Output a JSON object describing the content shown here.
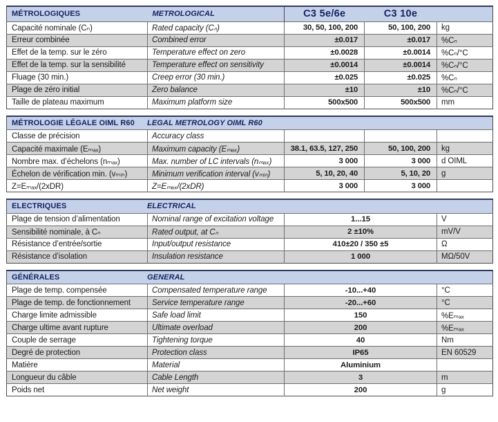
{
  "colors": {
    "header_bg": "#c5d1e9",
    "header_text": "#13235f",
    "row_alt": "#d4d4d4"
  },
  "columns": {
    "product1": "C3 5e/6e",
    "product2": "C3 10e"
  },
  "sections": [
    {
      "title_fr": "MÉTROLOGIQUES",
      "title_en": "METROLOGICAL",
      "rows": [
        {
          "fr": "Capacité nominale (Cₙ)",
          "en": "Rated capacity (Cₙ)",
          "v1": "30, 50, 100, 200",
          "v2": "50, 100, 200",
          "unit": "kg"
        },
        {
          "fr": "Erreur combinée",
          "en": "Combined error",
          "v1": "±0.017",
          "v2": "±0.017",
          "unit": "%Cₙ"
        },
        {
          "fr": "Effet de la temp. sur le zéro",
          "en": "Temperature effect on zero",
          "v1": "±0.0028",
          "v2": "±0.0014",
          "unit": "%Cₙ/°C"
        },
        {
          "fr": "Effet de la temp. sur la sensibilité",
          "en": "Temperature effect on sensitivity",
          "v1": "±0.0014",
          "v2": "±0.0014",
          "unit": "%Cₙ/°C"
        },
        {
          "fr": "Fluage (30 min.)",
          "en": "Creep error (30 min.)",
          "v1": "±0.025",
          "v2": "±0.025",
          "unit": "%Cₙ"
        },
        {
          "fr": "Plage de zéro initial",
          "en": "Zero balance",
          "v1": "±10",
          "v2": "±10",
          "unit": "%Cₙ/°C"
        },
        {
          "fr": "Taille de plateau maximum",
          "en": "Maximum platform size",
          "v1": "500x500",
          "v2": "500x500",
          "unit": "mm"
        }
      ]
    },
    {
      "title_fr": "MÉTROLOGIE LÉGALE OIML R60",
      "title_en": "LEGAL METROLOGY OIML R60",
      "rows": [
        {
          "fr": "Classe de précision",
          "en": "Accuracy class",
          "v1": "",
          "v2": "",
          "unit": ""
        },
        {
          "fr": "Capacité maximale (Eₘₐₓ)",
          "en": "Maximum capacity (Eₘₐₓ)",
          "v1": "38.1, 63.5, 127, 250",
          "v2": "50, 100, 200",
          "unit": "kg"
        },
        {
          "fr": "Nombre max. d’échelons (nₘₐₓ)",
          "en": "Max. number of LC intervals (nₘₐₓ)",
          "v1": "3 000",
          "v2": "3 000",
          "unit": "d OIML"
        },
        {
          "fr": "Échelon de vérification min. (vₘᵢₙ)",
          "en": "Minimum verification interval (vₘᵢₙ)",
          "v1": "5, 10, 20, 40",
          "v2": "5, 10, 20",
          "unit": "g"
        },
        {
          "fr": "Z=Eₘₐₓ/(2xDR)",
          "en": "Z=Eₘₐₓ/(2xDR)",
          "v1": "3 000",
          "v2": "3 000",
          "unit": ""
        }
      ]
    },
    {
      "title_fr": "ELECTRIQUES",
      "title_en": "ELECTRICAL",
      "rows": [
        {
          "fr": "Plage de tension d’alimentation",
          "en": "Nominal range of excitation voltage",
          "span": "1...15",
          "unit": "V"
        },
        {
          "fr": "Sensibilité nominale, à Cₙ",
          "en": "Rated output, at Cₙ",
          "span": "2 ±10%",
          "unit": "mV/V"
        },
        {
          "fr": "Résistance d’entrée/sortie",
          "en": "Input/output resistance",
          "span": "410±20 / 350 ±5",
          "unit": "Ω"
        },
        {
          "fr": "Résistance d’isolation",
          "en": "Insulation resistance",
          "span": "1 000",
          "unit": "MΩ/50V"
        }
      ]
    },
    {
      "title_fr": "GÉNÉRALES",
      "title_en": "GENERAL",
      "rows": [
        {
          "fr": "Plage de temp. compensée",
          "en": "Compensated temperature range",
          "span": "-10...+40",
          "unit": "°C"
        },
        {
          "fr": "Plage de temp. de fonctionnement",
          "en": "Service temperature range",
          "span": "-20...+60",
          "unit": "°C"
        },
        {
          "fr": "Charge limite admissible",
          "en": "Safe load limit",
          "span": "150",
          "unit": "%Eₘₐₓ"
        },
        {
          "fr": "Charge ultime avant rupture",
          "en": "Ultimate overload",
          "span": "200",
          "unit": "%Eₘₐₓ"
        },
        {
          "fr": "Couple de serrage",
          "en": "Tightening torque",
          "span": "40",
          "unit": "Nm"
        },
        {
          "fr": "Degré de protection",
          "en": "Protection class",
          "span": "IP65",
          "unit": "EN 60529"
        },
        {
          "fr": "Matière",
          "en": "Material",
          "span": "Aluminium",
          "unit": ""
        },
        {
          "fr": "Longueur du câble",
          "en": "Cable Length",
          "span": "3",
          "unit": "m"
        },
        {
          "fr": "Poids net",
          "en": "Net weight",
          "span": "200",
          "unit": "g"
        }
      ]
    }
  ]
}
